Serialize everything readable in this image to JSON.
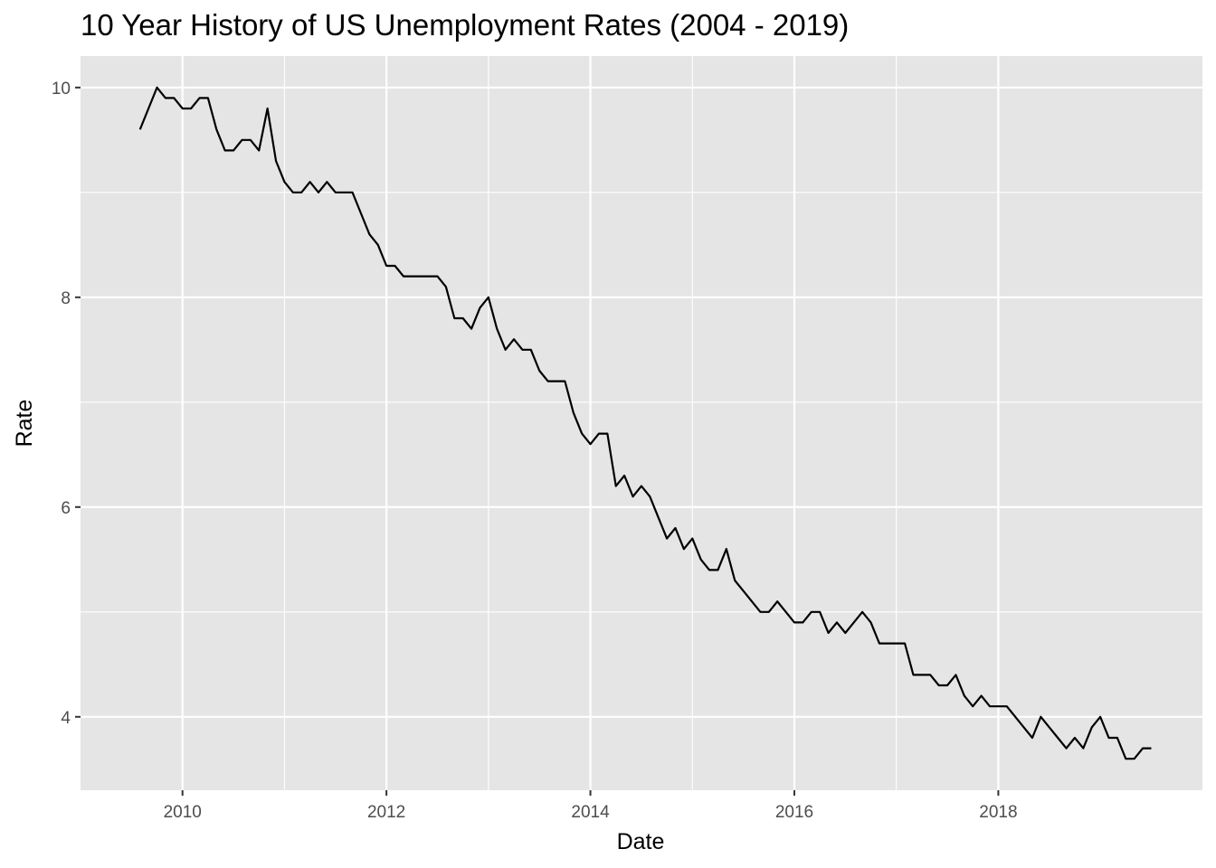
{
  "chart_data": {
    "type": "line",
    "title": "10 Year History of US Unemployment Rates (2004 - 2019)",
    "xlabel": "Date",
    "ylabel": "Rate",
    "xlim": [
      "2009-01-01",
      "2019-12-31"
    ],
    "ylim": [
      3.3,
      10.3
    ],
    "x_ticks": [
      "2010",
      "2012",
      "2014",
      "2016",
      "2018"
    ],
    "y_ticks": [
      "4",
      "6",
      "8",
      "10"
    ],
    "grid": true,
    "legend": "none",
    "line_color": "#000000",
    "background_color": "#E5E5E5",
    "grid_color": "#FFFFFF",
    "series": [
      {
        "x": [
          "2009-08",
          "2009-09",
          "2009-10",
          "2009-11",
          "2009-12",
          "2010-01",
          "2010-02",
          "2010-03",
          "2010-04",
          "2010-05",
          "2010-06",
          "2010-07",
          "2010-08",
          "2010-09",
          "2010-10",
          "2010-11",
          "2010-12",
          "2011-01",
          "2011-02",
          "2011-03",
          "2011-04",
          "2011-05",
          "2011-06",
          "2011-07",
          "2011-08",
          "2011-09",
          "2011-10",
          "2011-11",
          "2011-12",
          "2012-01",
          "2012-02",
          "2012-03",
          "2012-04",
          "2012-05",
          "2012-06",
          "2012-07",
          "2012-08",
          "2012-09",
          "2012-10",
          "2012-11",
          "2012-12",
          "2013-01",
          "2013-02",
          "2013-03",
          "2013-04",
          "2013-05",
          "2013-06",
          "2013-07",
          "2013-08",
          "2013-09",
          "2013-10",
          "2013-11",
          "2013-12",
          "2014-01",
          "2014-02",
          "2014-03",
          "2014-04",
          "2014-05",
          "2014-06",
          "2014-07",
          "2014-08",
          "2014-09",
          "2014-10",
          "2014-11",
          "2014-12",
          "2015-01",
          "2015-02",
          "2015-03",
          "2015-04",
          "2015-05",
          "2015-06",
          "2015-07",
          "2015-08",
          "2015-09",
          "2015-10",
          "2015-11",
          "2015-12",
          "2016-01",
          "2016-02",
          "2016-03",
          "2016-04",
          "2016-05",
          "2016-06",
          "2016-07",
          "2016-08",
          "2016-09",
          "2016-10",
          "2016-11",
          "2016-12",
          "2017-01",
          "2017-02",
          "2017-03",
          "2017-04",
          "2017-05",
          "2017-06",
          "2017-07",
          "2017-08",
          "2017-09",
          "2017-10",
          "2017-11",
          "2017-12",
          "2018-01",
          "2018-02",
          "2018-03",
          "2018-04",
          "2018-05",
          "2018-06",
          "2018-07",
          "2018-08",
          "2018-09",
          "2018-10",
          "2018-11",
          "2018-12",
          "2019-01",
          "2019-02",
          "2019-03",
          "2019-04",
          "2019-05",
          "2019-06",
          "2019-07"
        ],
        "values": [
          9.6,
          9.8,
          10.0,
          9.9,
          9.9,
          9.8,
          9.8,
          9.9,
          9.9,
          9.6,
          9.4,
          9.4,
          9.5,
          9.5,
          9.4,
          9.8,
          9.3,
          9.1,
          9.0,
          9.0,
          9.1,
          9.0,
          9.1,
          9.0,
          9.0,
          9.0,
          8.8,
          8.6,
          8.5,
          8.3,
          8.3,
          8.2,
          8.2,
          8.2,
          8.2,
          8.2,
          8.1,
          7.8,
          7.8,
          7.7,
          7.9,
          8.0,
          7.7,
          7.5,
          7.6,
          7.5,
          7.5,
          7.3,
          7.2,
          7.2,
          7.2,
          6.9,
          6.7,
          6.6,
          6.7,
          6.7,
          6.2,
          6.3,
          6.1,
          6.2,
          6.1,
          5.9,
          5.7,
          5.8,
          5.6,
          5.7,
          5.5,
          5.4,
          5.4,
          5.6,
          5.3,
          5.2,
          5.1,
          5.0,
          5.0,
          5.1,
          5.0,
          4.9,
          4.9,
          5.0,
          5.0,
          4.8,
          4.9,
          4.8,
          4.9,
          5.0,
          4.9,
          4.7,
          4.7,
          4.7,
          4.7,
          4.4,
          4.4,
          4.4,
          4.3,
          4.3,
          4.4,
          4.2,
          4.1,
          4.2,
          4.1,
          4.1,
          4.1,
          4.0,
          3.9,
          3.8,
          4.0,
          3.9,
          3.8,
          3.7,
          3.8,
          3.7,
          3.9,
          4.0,
          3.8,
          3.8,
          3.6,
          3.6,
          3.7,
          3.7
        ]
      }
    ]
  }
}
